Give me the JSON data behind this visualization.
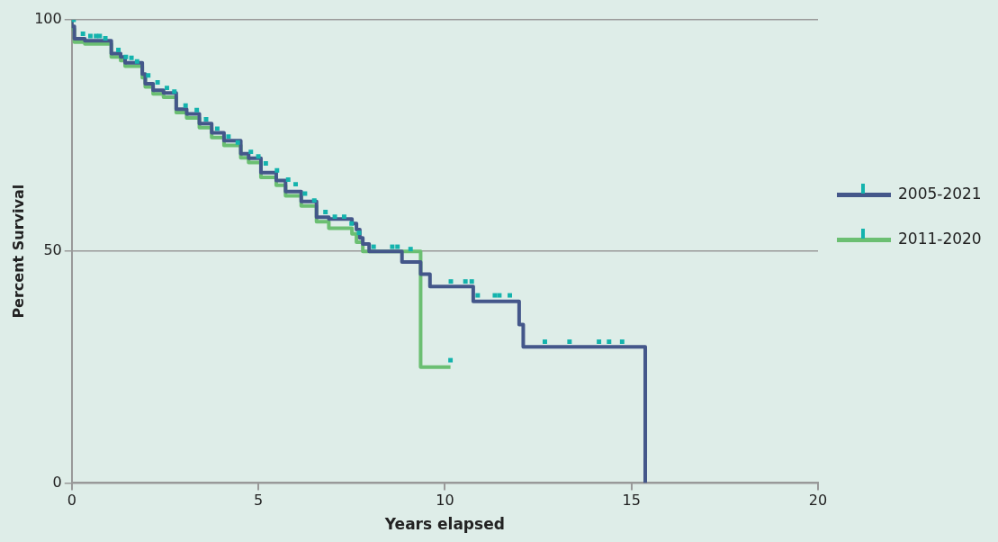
{
  "chart_data": {
    "type": "step",
    "xlabel": "Years elapsed",
    "ylabel": "Percent Survival",
    "xlim": [
      0,
      20
    ],
    "xticks": [
      0,
      5,
      10,
      15,
      20
    ],
    "ylim": [
      0,
      100
    ],
    "yticks": [
      0,
      50,
      100
    ],
    "grid": "y",
    "legend": "right",
    "marker": "none",
    "series": [
      {
        "name": "2011-2020",
        "color": "#6bbf72",
        "x": [
          0,
          0.07,
          0.35,
          1.06,
          1.31,
          1.43,
          1.89,
          1.97,
          2.18,
          2.46,
          2.8,
          3.08,
          3.42,
          3.75,
          4.08,
          4.53,
          4.74,
          5.07,
          5.48,
          5.73,
          6.15,
          6.56,
          6.89,
          7.51,
          7.63,
          7.8,
          9.35,
          9.35,
          10.15
        ],
        "values": [
          100,
          98,
          95.2,
          94.8,
          92,
          91.2,
          90,
          87.5,
          85.5,
          84,
          83.3,
          80,
          78.8,
          76.7,
          74.6,
          72.9,
          70.2,
          69.2,
          66,
          64.3,
          62,
          59.8,
          56.4,
          55,
          53.8,
          52,
          50,
          25,
          25
        ]
      },
      {
        "name": "2005-2021",
        "color": "#44578a",
        "x": [
          0,
          0.07,
          0.35,
          1.06,
          1.31,
          1.43,
          1.89,
          1.97,
          2.18,
          2.46,
          2.8,
          3.08,
          3.42,
          3.75,
          4.08,
          4.53,
          4.74,
          5.07,
          5.48,
          5.73,
          6.15,
          6.56,
          6.89,
          7.51,
          7.63,
          7.72,
          7.8,
          7.97,
          8.85,
          9.35,
          9.6,
          10.76,
          11.99,
          12.1,
          15.37,
          15.37
        ],
        "values": [
          100,
          98.6,
          95.9,
          95.5,
          92.7,
          92,
          90.7,
          88.3,
          86.2,
          84.8,
          84.2,
          80.7,
          79.7,
          77.6,
          75.6,
          73.9,
          71.1,
          70.1,
          67,
          65.3,
          62.9,
          60.8,
          57.4,
          57,
          56,
          54.7,
          52.9,
          51.6,
          50,
          47.7,
          45.1,
          42.4,
          39.2,
          34.2,
          29.4,
          0
        ]
      },
      {
        "type": "scatter",
        "marker": "square",
        "color": "#14b3ad",
        "x": [
          0.05,
          0.3,
          0.5,
          0.65,
          0.75,
          0.9,
          1.25,
          1.45,
          1.6,
          1.75,
          2.05,
          2.3,
          2.55,
          2.75,
          3.05,
          3.35,
          3.6,
          3.9,
          4.2,
          4.45,
          4.8,
          5.0,
          5.2,
          5.5,
          5.8,
          6.0,
          6.25,
          6.5,
          6.8,
          7.05,
          7.3,
          7.5,
          7.7,
          8.09,
          8.59,
          8.73,
          9.08,
          10.16,
          10.55,
          10.72,
          10.88,
          11.34,
          11.46,
          11.74,
          12.68,
          13.34,
          14.13,
          14.4,
          14.75,
          10.15
        ],
        "values": [
          100,
          97,
          96.5,
          96.5,
          96.5,
          96,
          93.5,
          92,
          91.8,
          91,
          88,
          86.5,
          85.3,
          84.5,
          81.5,
          80.5,
          78.5,
          76.5,
          74.8,
          73.5,
          71.5,
          70.5,
          69,
          67.5,
          65.5,
          64.5,
          62.5,
          61,
          58.5,
          57.5,
          57.5,
          56,
          54,
          51,
          51,
          51,
          50.5,
          43.5,
          43.5,
          43.5,
          40.5,
          40.5,
          40.5,
          40.5,
          30.5,
          30.5,
          30.5,
          30.5,
          30.5,
          26.5
        ]
      }
    ]
  }
}
